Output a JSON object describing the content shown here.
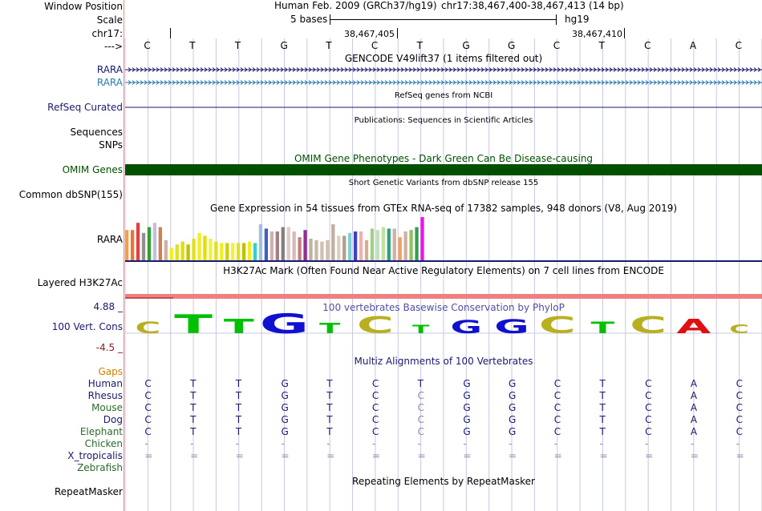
{
  "labels": {
    "window_position": "Window Position",
    "scale": "Scale",
    "chrom": "chr17:",
    "strand": "--->",
    "rara1": "RARA",
    "rara2": "RARA",
    "refseq": "RefSeq Curated",
    "sequences": "Sequences",
    "snps": "SNPs",
    "omim": "OMIM Genes",
    "common_dbsnp": "Common dbSNP(155)",
    "gtex_rara": "RARA",
    "h3k27ac": "Layered H3K27Ac",
    "vert_cons": "100 Vert. Cons",
    "vert_max": "4.88 _",
    "vert_min": "-4.5 _"
  },
  "header": {
    "assembly": "Human Feb. 2009 (GRCh37/hg19)",
    "position": "chr17:38,467,400-38,467,413 (14 bp)",
    "scale_text": "5 bases",
    "scale_db": "hg19",
    "coord1": "38,467,405",
    "coord2": "38,467,410"
  },
  "bases": [
    "C",
    "T",
    "T",
    "G",
    "T",
    "C",
    "T",
    "G",
    "G",
    "C",
    "T",
    "C",
    "A",
    "C"
  ],
  "tracks": {
    "gencode": "GENCODE V49lift37 (1 items filtered out)",
    "refseq": "RefSeq genes from NCBI",
    "publications": "Publications: Sequences in Scientific Articles",
    "omim": "OMIM Gene Phenotypes - Dark Green Can Be Disease-causing",
    "dbsnp": "Short Genetic Variants from dbSNP release 155",
    "gtex": "Gene Expression in 54 tissues from GTEx RNA-seq of 17382 samples, 948 donors (V8, Aug 2019)",
    "h3k27ac": "H3K27Ac Mark (Often Found Near Active Regulatory Elements) on 7 cell lines from ENCODE",
    "conservation": "100 vertebrates Basewise Conservation by PhyloP",
    "multiz": "Multiz Alignments of 100 Vertebrates",
    "repeatmasker_title": "Repeating Elements by RepeatMasker",
    "repeatmasker": "RepeatMasker"
  },
  "colors": {
    "rara1": "#1a1a6e",
    "rara2": "#2a7ab0",
    "omim_bar": "#005000",
    "h3k27ac_bar": "#f08080",
    "cons_label": "#5050a0"
  },
  "gtex_values": [
    0.42,
    0.42,
    0.52,
    0.38,
    0.46,
    0.52,
    0.46,
    0.28,
    0.17,
    0.22,
    0.26,
    0.22,
    0.3,
    0.38,
    0.34,
    0.3,
    0.26,
    0.24,
    0.24,
    0.24,
    0.24,
    0.24,
    0.26,
    0.24,
    0.5,
    0.44,
    0.4,
    0.4,
    0.46,
    0.46,
    0.4,
    0.32,
    0.42,
    0.3,
    0.28,
    0.26,
    0.28,
    0.5,
    0.34,
    0.34,
    0.38,
    0.4,
    0.4,
    0.28,
    0.44,
    0.42,
    0.46,
    0.44,
    0.44,
    0.32,
    0.4,
    0.42,
    0.46,
    0.6
  ],
  "gtex_colors": [
    "#f0a040",
    "#f07030",
    "#e04040",
    "#909090",
    "#30a030",
    "#c0c0e0",
    "#d08050",
    "#d0b0a0",
    "#f0f020",
    "#e0e020",
    "#e0e000",
    "#c0c000",
    "#e0e020",
    "#f0f020",
    "#e0e000",
    "#f0f040",
    "#e0e020",
    "#f0f020",
    "#d0d000",
    "#f0f040",
    "#e0e020",
    "#c0c000",
    "#f0f020",
    "#30d0d0",
    "#a0c0e0",
    "#4060c0",
    "#d0b0b0",
    "#a08080",
    "#808080",
    "#e0c8c8",
    "#d8b8b8",
    "#c08080",
    "#903090",
    "#c0b0a0",
    "#c8b8a8",
    "#d0c0b0",
    "#d0c0b0",
    "#c0b0a0",
    "#e0d0c0",
    "#b0a090",
    "#80d0d0",
    "#4040c0",
    "#f0b0b0",
    "#d0b090",
    "#a0d080",
    "#c0e0c0",
    "#c0e0a0",
    "#30a080",
    "#d0b0a0",
    "#f0a060",
    "#d0b0a0",
    "#90c060",
    "#30a050",
    "#f010f0"
  ],
  "cons_logo": [
    {
      "base": "C",
      "color": "#b8b020",
      "size": 0.35
    },
    {
      "base": "T",
      "color": "#00c000",
      "size": 0.9
    },
    {
      "base": "T",
      "color": "#00c000",
      "size": 0.6
    },
    {
      "base": "G",
      "color": "#1010d0",
      "size": 1.0
    },
    {
      "base": "T",
      "color": "#00c000",
      "size": 0.25
    },
    {
      "base": "C",
      "color": "#b8b020",
      "size": 0.75
    },
    {
      "base": "T",
      "color": "#00c000",
      "size": 0.1
    },
    {
      "base": "G",
      "color": "#1010d0",
      "size": 0.45
    },
    {
      "base": "G",
      "color": "#1010d0",
      "size": 0.55
    },
    {
      "base": "C",
      "color": "#b8b020",
      "size": 0.75
    },
    {
      "base": "T",
      "color": "#00c000",
      "size": 0.35
    },
    {
      "base": "C",
      "color": "#b8b020",
      "size": 0.75
    },
    {
      "base": "A",
      "color": "#e01010",
      "size": 0.6
    },
    {
      "base": "C",
      "color": "#b8b020",
      "size": 0.15
    }
  ],
  "alignment": [
    {
      "species": "Gaps",
      "color": "#d08000",
      "row": []
    },
    {
      "species": "Human",
      "color": "#1a1a6e",
      "row": [
        "C",
        "T",
        "T",
        "G",
        "T",
        "C",
        "T",
        "G",
        "G",
        "C",
        "T",
        "C",
        "A",
        "C"
      ]
    },
    {
      "species": "Rhesus",
      "color": "#1a1a6e",
      "row": [
        "C",
        "T",
        "T",
        "G",
        "T",
        "C",
        "C",
        "G",
        "G",
        "C",
        "T",
        "C",
        "A",
        "C"
      ]
    },
    {
      "species": "Mouse",
      "color": "#2a6a2a",
      "row": [
        "C",
        "T",
        "T",
        "G",
        "T",
        "C",
        "C",
        "G",
        "G",
        "C",
        "T",
        "C",
        "A",
        "C"
      ]
    },
    {
      "species": "Dog",
      "color": "#1a1a6e",
      "row": [
        "C",
        "T",
        "T",
        "G",
        "T",
        "C",
        "C",
        "G",
        "G",
        "C",
        "T",
        "C",
        "A",
        "C"
      ]
    },
    {
      "species": "Elephant",
      "color": "#2a6a2a",
      "row": [
        "C",
        "T",
        "T",
        "G",
        "T",
        "C",
        "C",
        "G",
        "G",
        "C",
        "T",
        "C",
        "A",
        "C"
      ]
    },
    {
      "species": "Chicken",
      "color": "#2a6a2a",
      "row": [
        "-",
        "-",
        "-",
        "-",
        "-",
        "-",
        "-",
        "-",
        "-",
        "-",
        "-",
        "-",
        "-",
        "-"
      ]
    },
    {
      "species": "X_tropicalis",
      "color": "#1a1a6e",
      "row": [
        "=",
        "=",
        "=",
        "=",
        "=",
        "=",
        "=",
        "=",
        "=",
        "=",
        "=",
        "=",
        "=",
        "="
      ]
    },
    {
      "species": "Zebrafish",
      "color": "#2a6a2a",
      "row": []
    }
  ]
}
